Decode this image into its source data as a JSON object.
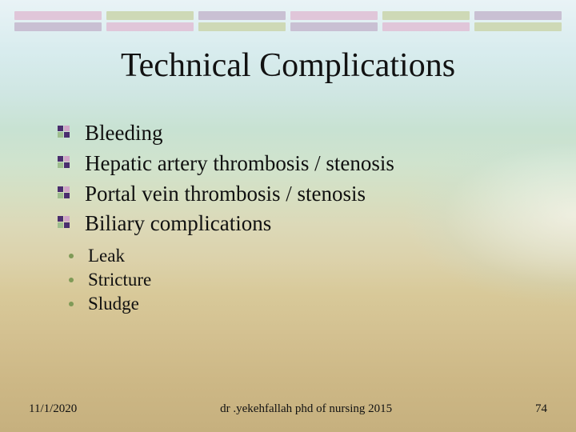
{
  "topbar": {
    "row1_colors": [
      "#e0c6d9",
      "#ced9b6",
      "#c9c0d3",
      "#e0c6d9",
      "#ced9b6",
      "#c9c0d3"
    ],
    "row2_colors": [
      "#c9c0d3",
      "#e0c6d9",
      "#ced9b6",
      "#c9c0d3",
      "#e0c6d9",
      "#ced9b6"
    ]
  },
  "title": {
    "text": "Technical Complications",
    "fontsize": 42,
    "color": "#121212"
  },
  "content": {
    "main_fontsize": 27,
    "sub_fontsize": 23,
    "items": [
      {
        "text": "Bleeding"
      },
      {
        "text": "Hepatic artery thrombosis / stenosis"
      },
      {
        "text": "Portal vein thrombosis / stenosis"
      },
      {
        "text": "Biliary complications"
      }
    ],
    "subitems": [
      {
        "text": "Leak"
      },
      {
        "text": "Stricture"
      },
      {
        "text": "Sludge"
      }
    ]
  },
  "footer": {
    "date": "11/1/2020",
    "center": "dr .yekehfallah phd  of nursing 2015",
    "page": "74",
    "fontsize": 15
  }
}
